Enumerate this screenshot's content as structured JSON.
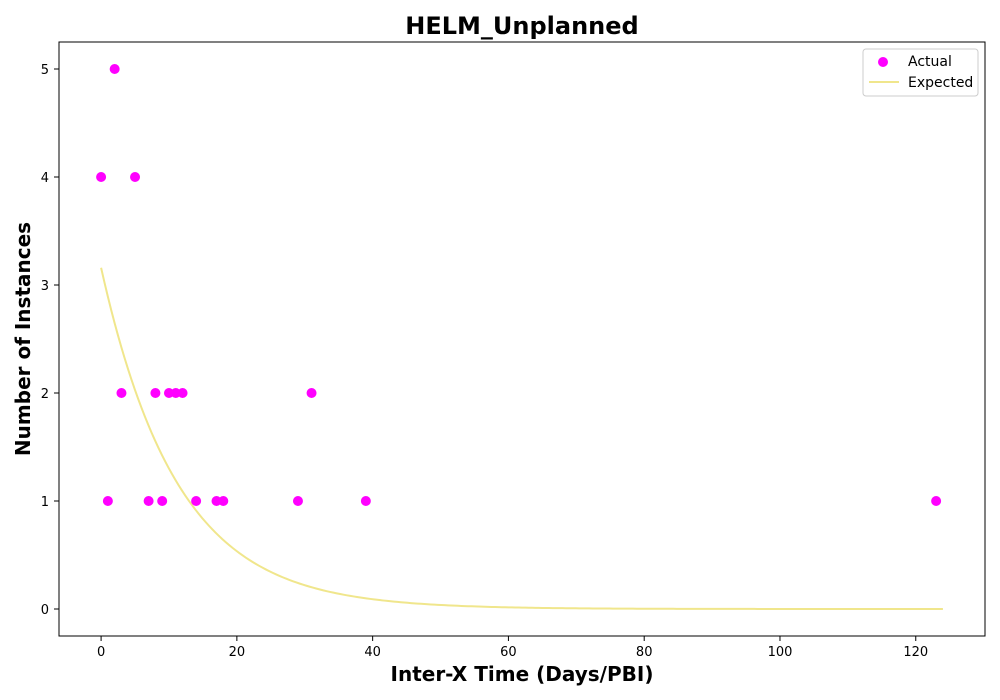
{
  "chart_data": {
    "type": "scatter",
    "title": "HELM_Unplanned",
    "xlabel": "Inter-X Time (Days/PBI)",
    "ylabel": "Number of Instances",
    "xlim": [
      -6.2,
      130.2
    ],
    "ylim": [
      -0.25,
      5.25
    ],
    "xticks": [
      0,
      20,
      40,
      60,
      80,
      100,
      120
    ],
    "yticks": [
      0,
      1,
      2,
      3,
      4,
      5
    ],
    "grid": false,
    "legend_position": "top-right",
    "series": [
      {
        "name": "Actual",
        "kind": "scatter",
        "color": "#ff00ff",
        "points": [
          [
            0,
            4
          ],
          [
            1,
            1
          ],
          [
            2,
            5
          ],
          [
            3,
            2
          ],
          [
            5,
            4
          ],
          [
            7,
            1
          ],
          [
            8,
            2
          ],
          [
            9,
            1
          ],
          [
            10,
            2
          ],
          [
            11,
            2
          ],
          [
            12,
            2
          ],
          [
            14,
            1
          ],
          [
            17,
            1
          ],
          [
            18,
            1
          ],
          [
            29,
            1
          ],
          [
            31,
            2
          ],
          [
            39,
            1
          ],
          [
            123,
            1
          ]
        ]
      },
      {
        "name": "Expected",
        "kind": "line",
        "color": "#f0e68c",
        "model": "exponential",
        "amplitude": 3.16,
        "rate": 0.0888,
        "x_range": [
          0,
          124
        ]
      }
    ]
  }
}
